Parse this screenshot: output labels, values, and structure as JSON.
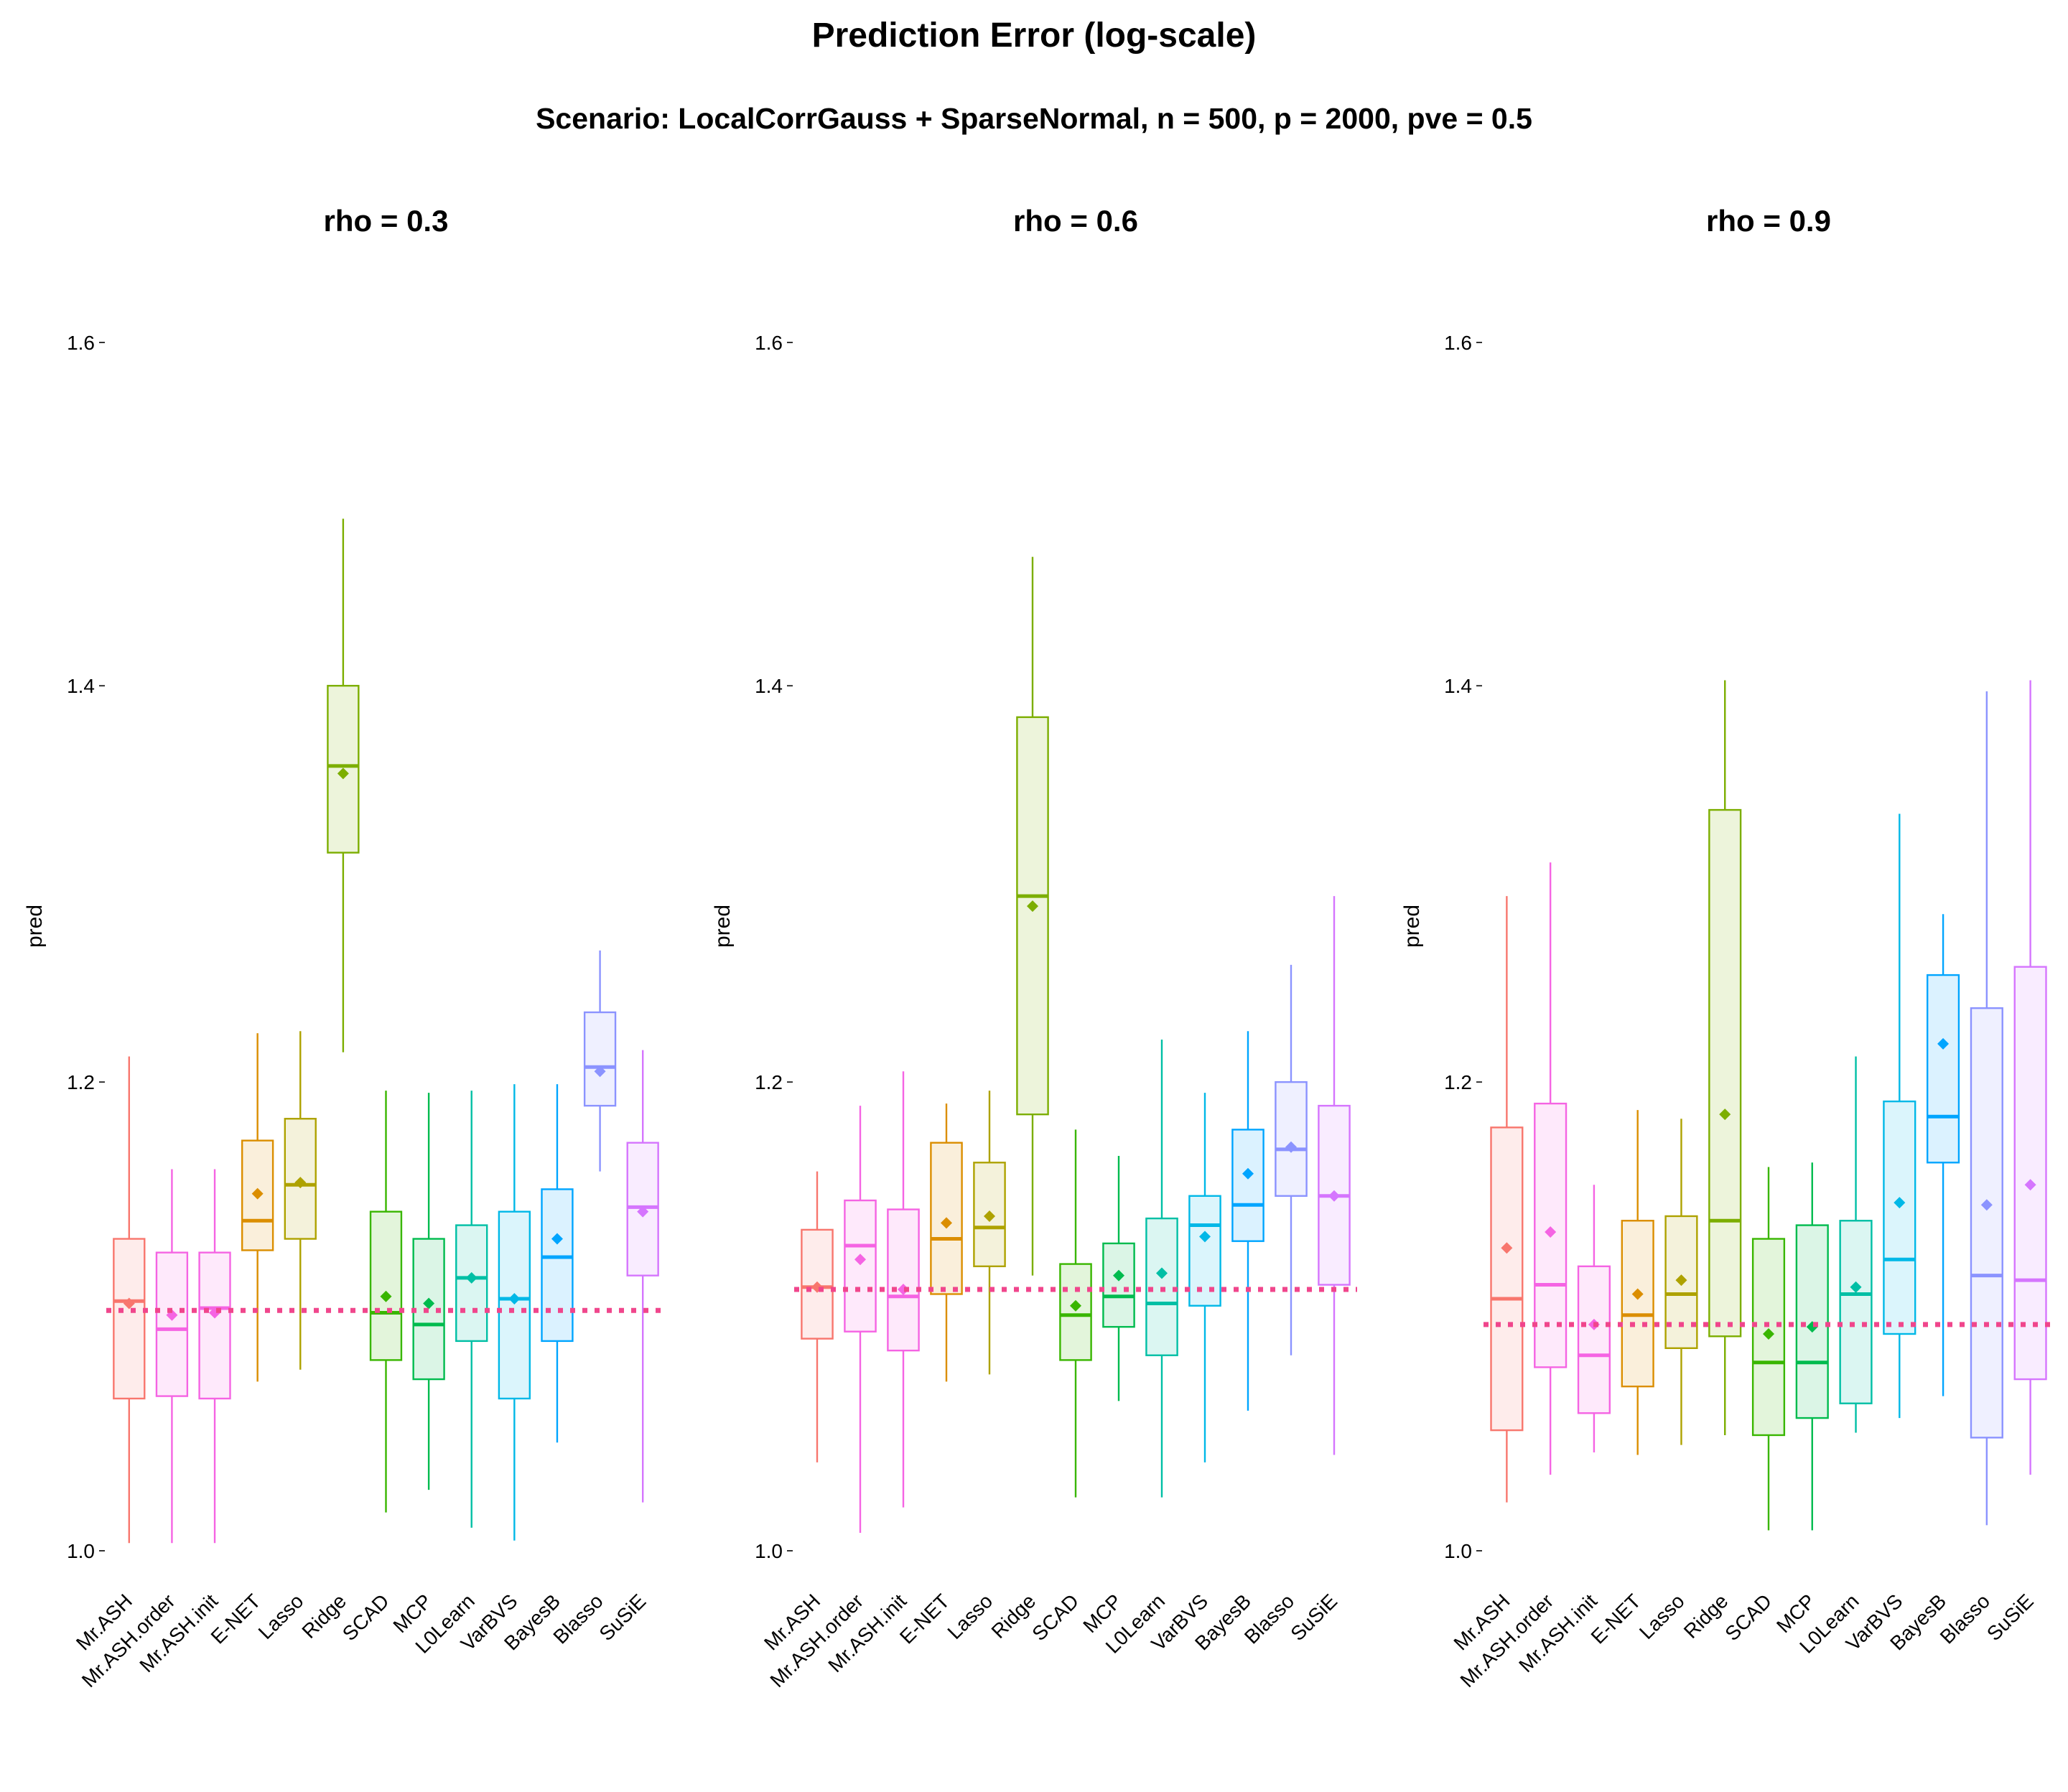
{
  "title": "Prediction Error (log-scale)",
  "subtitle": "Scenario: LocalCorrGauss + SparseNormal, n = 500, p = 2000, pve = 0.5",
  "chart_data": {
    "type": "boxplot",
    "ylabel": "pred",
    "ylim": [
      0.975,
      1.62
    ],
    "yticks": [
      1.0,
      1.2,
      1.4,
      1.6
    ],
    "yticklabels": [
      "1.0",
      "1.2",
      "1.4",
      "1.6"
    ],
    "methods": [
      "Mr.ASH",
      "Mr.ASH.order",
      "Mr.ASH.init",
      "E-NET",
      "Lasso",
      "Ridge",
      "SCAD",
      "MCP",
      "L0Learn",
      "VarBVS",
      "BayesB",
      "Blasso",
      "SuSiE"
    ],
    "colors": [
      "#F8766D",
      "#F564E3",
      "#F564E3",
      "#DB8E00",
      "#AEA200",
      "#7CAE00",
      "#39B600",
      "#00BB4E",
      "#00BFA5",
      "#00B8E7",
      "#00A5FF",
      "#8B93FF",
      "#D575FE"
    ],
    "reference_line_color": "#F0468C",
    "facets": [
      {
        "title": "rho = 0.3",
        "reference_line": 1.098,
        "boxes": [
          {
            "method": "Mr.ASH",
            "whisker_low": 1.003,
            "q1": 1.061,
            "median": 1.102,
            "q3": 1.129,
            "whisker_high": 1.212,
            "mean": 1.101
          },
          {
            "method": "Mr.ASH.order",
            "whisker_low": 1.003,
            "q1": 1.062,
            "median": 1.09,
            "q3": 1.123,
            "whisker_high": 1.16,
            "mean": 1.096
          },
          {
            "method": "Mr.ASH.init",
            "whisker_low": 1.003,
            "q1": 1.061,
            "median": 1.099,
            "q3": 1.123,
            "whisker_high": 1.16,
            "mean": 1.097
          },
          {
            "method": "E-NET",
            "whisker_low": 1.068,
            "q1": 1.124,
            "median": 1.137,
            "q3": 1.173,
            "whisker_high": 1.223,
            "mean": 1.149
          },
          {
            "method": "Lasso",
            "whisker_low": 1.073,
            "q1": 1.129,
            "median": 1.153,
            "q3": 1.183,
            "whisker_high": 1.224,
            "mean": 1.154
          },
          {
            "method": "Ridge",
            "whisker_low": 1.214,
            "q1": 1.312,
            "median": 1.357,
            "q3": 1.4,
            "whisker_high": 1.494,
            "mean": 1.353
          },
          {
            "method": "SCAD",
            "whisker_low": 1.015,
            "q1": 1.077,
            "median": 1.097,
            "q3": 1.141,
            "whisker_high": 1.196,
            "mean": 1.104
          },
          {
            "method": "MCP",
            "whisker_low": 1.024,
            "q1": 1.069,
            "median": 1.092,
            "q3": 1.129,
            "whisker_high": 1.195,
            "mean": 1.101
          },
          {
            "method": "L0Learn",
            "whisker_low": 1.009,
            "q1": 1.085,
            "median": 1.112,
            "q3": 1.135,
            "whisker_high": 1.196,
            "mean": 1.112
          },
          {
            "method": "VarBVS",
            "whisker_low": 1.004,
            "q1": 1.061,
            "median": 1.103,
            "q3": 1.141,
            "whisker_high": 1.199,
            "mean": 1.103
          },
          {
            "method": "BayesB",
            "whisker_low": 1.043,
            "q1": 1.085,
            "median": 1.121,
            "q3": 1.151,
            "whisker_high": 1.199,
            "mean": 1.129
          },
          {
            "method": "Blasso",
            "whisker_low": 1.159,
            "q1": 1.189,
            "median": 1.207,
            "q3": 1.233,
            "whisker_high": 1.263,
            "mean": 1.205
          },
          {
            "method": "SuSiE",
            "whisker_low": 1.019,
            "q1": 1.113,
            "median": 1.143,
            "q3": 1.172,
            "whisker_high": 1.215,
            "mean": 1.141
          }
        ]
      },
      {
        "title": "rho = 0.6",
        "reference_line": 1.107,
        "boxes": [
          {
            "method": "Mr.ASH",
            "whisker_low": 1.035,
            "q1": 1.086,
            "median": 1.108,
            "q3": 1.133,
            "whisker_high": 1.159,
            "mean": 1.108
          },
          {
            "method": "Mr.ASH.order",
            "whisker_low": 1.007,
            "q1": 1.089,
            "median": 1.126,
            "q3": 1.146,
            "whisker_high": 1.189,
            "mean": 1.12
          },
          {
            "method": "Mr.ASH.init",
            "whisker_low": 1.017,
            "q1": 1.081,
            "median": 1.104,
            "q3": 1.142,
            "whisker_high": 1.205,
            "mean": 1.107
          },
          {
            "method": "E-NET",
            "whisker_low": 1.068,
            "q1": 1.105,
            "median": 1.129,
            "q3": 1.172,
            "whisker_high": 1.19,
            "mean": 1.136
          },
          {
            "method": "Lasso",
            "whisker_low": 1.071,
            "q1": 1.117,
            "median": 1.134,
            "q3": 1.163,
            "whisker_high": 1.196,
            "mean": 1.139
          },
          {
            "method": "Ridge",
            "whisker_low": 1.113,
            "q1": 1.185,
            "median": 1.29,
            "q3": 1.383,
            "whisker_high": 1.472,
            "mean": 1.285
          },
          {
            "method": "SCAD",
            "whisker_low": 1.021,
            "q1": 1.077,
            "median": 1.096,
            "q3": 1.118,
            "whisker_high": 1.178,
            "mean": 1.1
          },
          {
            "method": "MCP",
            "whisker_low": 1.06,
            "q1": 1.091,
            "median": 1.104,
            "q3": 1.127,
            "whisker_high": 1.166,
            "mean": 1.113
          },
          {
            "method": "L0Learn",
            "whisker_low": 1.021,
            "q1": 1.079,
            "median": 1.101,
            "q3": 1.138,
            "whisker_high": 1.22,
            "mean": 1.114
          },
          {
            "method": "VarBVS",
            "whisker_low": 1.035,
            "q1": 1.1,
            "median": 1.135,
            "q3": 1.148,
            "whisker_high": 1.195,
            "mean": 1.13
          },
          {
            "method": "BayesB",
            "whisker_low": 1.056,
            "q1": 1.128,
            "median": 1.144,
            "q3": 1.178,
            "whisker_high": 1.224,
            "mean": 1.158
          },
          {
            "method": "Blasso",
            "whisker_low": 1.079,
            "q1": 1.148,
            "median": 1.169,
            "q3": 1.2,
            "whisker_high": 1.256,
            "mean": 1.17
          },
          {
            "method": "SuSiE",
            "whisker_low": 1.038,
            "q1": 1.109,
            "median": 1.148,
            "q3": 1.189,
            "whisker_high": 1.29,
            "mean": 1.148
          }
        ]
      },
      {
        "title": "rho = 0.9",
        "reference_line": 1.092,
        "boxes": [
          {
            "method": "Mr.ASH",
            "whisker_low": 1.019,
            "q1": 1.048,
            "median": 1.103,
            "q3": 1.179,
            "whisker_high": 1.29,
            "mean": 1.125
          },
          {
            "method": "Mr.ASH.order",
            "whisker_low": 1.03,
            "q1": 1.074,
            "median": 1.109,
            "q3": 1.19,
            "whisker_high": 1.307,
            "mean": 1.132
          },
          {
            "method": "Mr.ASH.init",
            "whisker_low": 1.039,
            "q1": 1.055,
            "median": 1.079,
            "q3": 1.117,
            "whisker_high": 1.153,
            "mean": 1.092
          },
          {
            "method": "E-NET",
            "whisker_low": 1.038,
            "q1": 1.066,
            "median": 1.096,
            "q3": 1.137,
            "whisker_high": 1.187,
            "mean": 1.105
          },
          {
            "method": "Lasso",
            "whisker_low": 1.042,
            "q1": 1.082,
            "median": 1.105,
            "q3": 1.139,
            "whisker_high": 1.183,
            "mean": 1.111
          },
          {
            "method": "Ridge",
            "whisker_low": 1.046,
            "q1": 1.087,
            "median": 1.137,
            "q3": 1.334,
            "whisker_high": 1.403,
            "mean": 1.185
          },
          {
            "method": "SCAD",
            "whisker_low": 1.008,
            "q1": 1.046,
            "median": 1.076,
            "q3": 1.129,
            "whisker_high": 1.161,
            "mean": 1.088
          },
          {
            "method": "MCP",
            "whisker_low": 1.008,
            "q1": 1.053,
            "median": 1.076,
            "q3": 1.135,
            "whisker_high": 1.163,
            "mean": 1.091
          },
          {
            "method": "L0Learn",
            "whisker_low": 1.047,
            "q1": 1.059,
            "median": 1.105,
            "q3": 1.137,
            "whisker_high": 1.212,
            "mean": 1.108
          },
          {
            "method": "VarBVS",
            "whisker_low": 1.053,
            "q1": 1.088,
            "median": 1.12,
            "q3": 1.191,
            "whisker_high": 1.332,
            "mean": 1.145
          },
          {
            "method": "BayesB",
            "whisker_low": 1.062,
            "q1": 1.163,
            "median": 1.184,
            "q3": 1.251,
            "whisker_high": 1.281,
            "mean": 1.218
          },
          {
            "method": "Blasso",
            "whisker_low": 1.01,
            "q1": 1.045,
            "median": 1.113,
            "q3": 1.235,
            "whisker_high": 1.397,
            "mean": 1.144
          },
          {
            "method": "SuSiE",
            "whisker_low": 1.03,
            "q1": 1.069,
            "median": 1.111,
            "q3": 1.255,
            "whisker_high": 1.403,
            "mean": 1.153
          }
        ]
      }
    ]
  }
}
